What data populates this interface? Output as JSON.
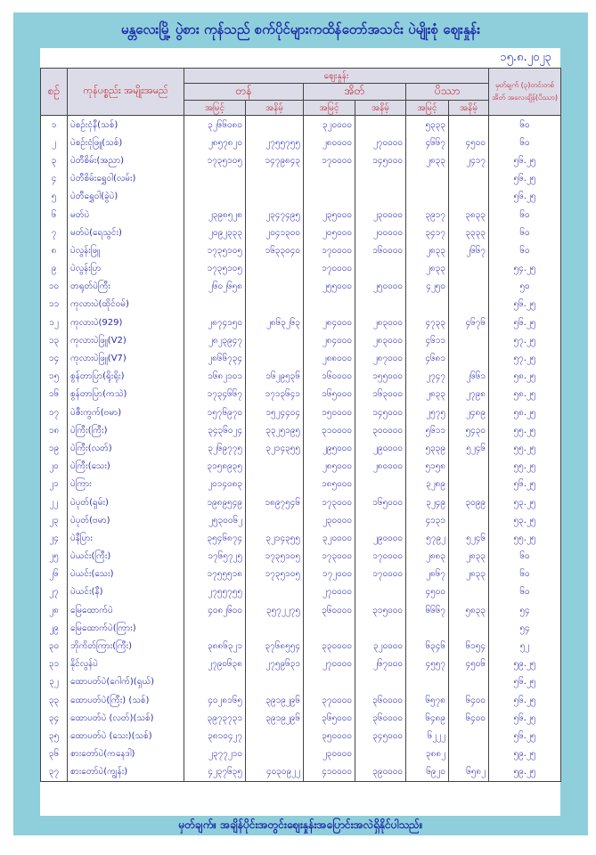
{
  "title": "မန္တလေးမြို့ ပွဲစား ကုန်သည် စက်ပိုင်များကထိန်တော်အသင်း ပဲမျိုးစုံ ဈေးနှုန်း",
  "date": "၁၅.၈.၂၀၂၃",
  "headers": {
    "no": "စဉ်",
    "item": "ကုန်ပစ္စည်း အမျိုးအမည်",
    "price": "ဈေးနှုန်း",
    "ton": "တန်",
    "bag": "အိတ်",
    "viss": "ပိဿာ",
    "high": "အမြင့်",
    "low": "အနိမ့်",
    "note": "မှတ်ချက် (၃)တင်းတစ်အိတ် အလေးချိန်(ပိဿာ)"
  },
  "rows": [
    [
      "၁",
      "ပဲစဉ်းငုံနီ(သစ်)",
      "၃၂၆၆၀၈၀",
      "",
      "၃၂၀၀၀၀",
      "",
      "၅၃၃၃",
      "",
      "၆၀"
    ],
    [
      "၂",
      "ပဲစဉ်းငုံဖြူ(သစ်)",
      "၂၈၅၇၈၂၀",
      "၂၇၅၅၇၅၅",
      "၂၈၀၀၀၀",
      "၂၇၀၀၀၀",
      "၄၆၆၇",
      "၄၅၀၀",
      "၆၀"
    ],
    [
      "၃",
      "ပဲတီစိမ်း(အညာ)",
      "၁၇၃၅၁၀၅",
      "၁၄၇၉၈၄၃",
      "၁၇၀၀၀၀",
      "၁၄၅၀၀၀",
      "၂၈၃၃",
      "၂၄၁၇",
      "၅၆.၂၅"
    ],
    [
      "၄",
      "ပဲတီစိမ်းရွှေဝါ(လမ်း)",
      "",
      "",
      "",
      "",
      "",
      "",
      "၅၆.၂၅"
    ],
    [
      "၅",
      "ပဲတီရွှေဝါ(ခွဲပဲ)",
      "",
      "",
      "",
      "",
      "",
      "",
      "၅၆.၂၅"
    ],
    [
      "၆",
      "မတ်ပဲ",
      "၂၃၉၈၅၂၈",
      "၂၃၄၇၄၉၅",
      "၂၃၅၀၀၀",
      "၂၃၀၀၀၀",
      "၃၉၁၇",
      "၃၈၃၃",
      "၆၀"
    ],
    [
      "၇",
      "မတ်ပဲ(ရေသွင်း)",
      "၂၀၉၂၃၃၃",
      "၂၀၄၁၃၀၀",
      "၂၀၅၀၀၀",
      "၂၀၀၀၀၀",
      "၃၄၁၇",
      "၃၃၃၃",
      "၆၀"
    ],
    [
      "၈",
      "ပဲလွန်းဖြူ",
      "၁၇၃၅၁၀၅",
      "၁၆၃၃၀၄၀",
      "၁၇၀၀၀၀",
      "၁၆၀၀၀၀",
      "၂၈၃၃",
      "၂၆၆၇",
      "၆၀"
    ],
    [
      "၉",
      "ပဲလွန်းပြာ",
      "၁၇၃၅၁၀၅",
      "",
      "၁၇၀၀၀၀",
      "",
      "၂၈၃၃",
      "",
      "၅၄.၂၅"
    ],
    [
      "၁၀",
      "တရုတ်ပဲကြီး",
      "၂၆၀၂၆၅၈",
      "",
      "၂၅၅၀၀၀",
      "၂၅၀၀၀၀",
      "၄၂၅၀",
      "",
      "၅၀"
    ],
    [
      "၁၁",
      "ကုလားပဲ(ထိုင်ဝမ်)",
      "",
      "",
      "",
      "",
      "",
      "",
      "၅၆.၂၅"
    ],
    [
      "၁၂",
      "ကုလားပဲ(929)",
      "၂၈၇၄၁၅၀",
      "၂၈၆၃၂၆၃",
      "၂၈၄၀၀၀",
      "၂၈၃၀၀၀",
      "၄၇၃၃",
      "၄၆၇၆",
      "၅၆.၂၅"
    ],
    [
      "၁၃",
      "ကုလားပဲဖြူ(V2)",
      "၂၈၂၃၉၄၇",
      "",
      "၂၈၄၀၀၀",
      "၂၈၃၀၀၀",
      "၄၆၁၁",
      "",
      "၅၇.၂၅"
    ],
    [
      "၁၄",
      "ကုလားပဲဖြူ(V7)",
      "၂၈၆၆၇၃၄",
      "",
      "၂၈၈၀၀၀",
      "၂၈၇၀၀၀",
      "၄၆၈၁",
      "",
      "၅၇.၂၅"
    ],
    [
      "၁၅",
      "စွန်တာပြာ(ရိုးရိုး)",
      "၁၆၈၂၁၀၁",
      "၁၆၂၉၅၃၆",
      "၁၆၀၀၀၀",
      "၁၅၅၀၀၀",
      "၂၇၄၇",
      "၂၆၆၁",
      "၅၈.၂၅"
    ],
    [
      "၁၆",
      "စွန်တာပြာ(ကသဲ)",
      "၁၇၃၄၆၆၇",
      "၁၇၁၃၆၄၁",
      "၁၆၅၀၀၀",
      "၁၆၃၀၀၀",
      "၂၈၃၃",
      "၂၇၉၈",
      "၅၈.၂၅"
    ],
    [
      "၁၇",
      "ပဲဇီးကွက်(ဗမာ)",
      "၁၅၇၆၉၇၀",
      "၁၅၂၄၄၀၄",
      "၁၅၀၀၀၀",
      "၁၄၅၀၀၀",
      "၂၅၇၅",
      "၂၄၈၉",
      "၅၈.၂၅"
    ],
    [
      "၁၈",
      "ပဲကြီး(ကြီး)",
      "၃၄၃၆၀၂၄",
      "၃၃၂၅၁၉၅",
      "၃၁၀၀၀၀",
      "၃၀၀၀၀၀",
      "၅၆၁၁",
      "၅၄၃၀",
      "၅၅.၂၅"
    ],
    [
      "၁၉",
      "ပဲကြီး(လတ်)",
      "၃၂၆၉၇၇၅",
      "၃၂၁၄၃၅၅",
      "၂၉၅၀၀၀",
      "၂၉၀၀၀၀",
      "၅၃၃၉",
      "၅၂၄၆",
      "၅၅.၂၅"
    ],
    [
      "၂၀",
      "ပဲကြီး(သေး)",
      "၃၁၅၈၉၃၅",
      "",
      "၂၈၅၀၀၀",
      "၂၈၀၀၀၀",
      "၅၁၅၈",
      "",
      "၅၅.၂၅"
    ],
    [
      "၂၁",
      "ပဲကြား",
      "၂၀၁၄၀၈၃",
      "",
      "၁၈၅၀၀၀",
      "",
      "၃၂၈၉",
      "",
      "၅၆.၂၅"
    ],
    [
      "၂၂",
      "ပဲပုတ်(ရှမ်း)",
      "၁၉၈၉၅၄၉",
      "၁၈၉၇၅၄၆",
      "၁၇၃၀၀၀",
      "၁၆၅၀၀၀",
      "၃၂၄၉",
      "၃၀၉၉",
      "၅၃.၂၅"
    ],
    [
      "၂၃",
      "ပဲပုတ်(ဗမာ)",
      "၂၅၃၀၀၆၂",
      "",
      "၂၃၀၀၀၀",
      "",
      "၄၁၃၁",
      "",
      "၅၃.၂၅"
    ],
    [
      "၂၄",
      "ပဲနီပြား",
      "၃၅၄၆၈၇၄",
      "၃၂၁၄၃၅၅",
      "၃၂၀၀၀၀",
      "၂၉၀၀၀၀",
      "၅၇၉၂",
      "၅၂၄၆",
      "၅၅.၂၅"
    ],
    [
      "၂၅",
      "ပဲယင်း(ကြီး)",
      "၁၇၆၅၇၂၅",
      "၁၇၃၅၁၀၅",
      "၁၇၃၀၀၀",
      "၁၇၀၀၀၀",
      "၂၈၈၃",
      "၂၈၃၃",
      "၆၀"
    ],
    [
      "၂၆",
      "ပဲယင်း(သေး)",
      "၁၇၅၅၅၁၈",
      "၁၇၃၅၁၀၅",
      "၁၇၂၀၀၀",
      "၁၇၀၀၀၀",
      "၂၈၆၇",
      "၂၈၃၃",
      "၆၀"
    ],
    [
      "၂၇",
      "ပဲယင်း(နီ)",
      "၂၇၅၅၇၅၅",
      "",
      "၂၇၀၀၀၀",
      "",
      "၄၅၀၀",
      "",
      "၆၀"
    ],
    [
      "၂၈",
      "မြေထောက်ပဲ",
      "၄၀၈၂၆၀၀",
      "၃၅၇၂၂၇၅",
      "၃၆၀၀၀၀",
      "၃၁၅၀၀၀",
      "၆၆၆၇",
      "၅၈၃၃",
      "၅၄"
    ],
    [
      "၂၉",
      "မြေထောက်ပဲ(ကြား)",
      "",
      "",
      "",
      "",
      "",
      "",
      "၅၄"
    ],
    [
      "၃၀",
      "ဘိုကိတ်ကြား(ကြီး)",
      "၃၈၈၆၃၂၁",
      "၃၇၆၈၅၅၄",
      "၃၃၀၀၀၀",
      "၃၂၀၀၀၀",
      "၆၃၄၆",
      "၆၁၅၄",
      "၅၂"
    ],
    [
      "၃၁",
      "နိုင်လွန်ပဲ",
      "၂၇၉၀၆၃၈",
      "၂၇၅၉၆၃၁",
      "၂၇၀၀၀၀",
      "၂၆၇၀၀၀",
      "၄၅၅၇",
      "၄၅၀၆",
      "၅၉.၂၅"
    ],
    [
      "၃၂",
      "ထောပတ်ပဲ(ဂေါက်)(ရှယ်)",
      "",
      "",
      "",
      "",
      "",
      "",
      "၅၆.၂၅"
    ],
    [
      "၃၃",
      "ထောပတ်ပဲ(ကြီး) (သစ်)",
      "၄၀၂၈၁၆၅",
      "၃၉၁၉၂၉၆",
      "၃၇၀၀၀၀",
      "၃၆၀၀၀၀",
      "၆၅၇၈",
      "၆၄၀၀",
      "၅၆.၂၅"
    ],
    [
      "၃၄",
      "ထောပတ်ပဲ (လတ်)(သစ်)",
      "၃၉၇၃၇၃၁",
      "၃၉၁၉၂၉၆",
      "၃၆၅၀၀၀",
      "၃၆၀၀၀၀",
      "၆၄၈၉",
      "၆၄၀၀",
      "၅၆.၂၅"
    ],
    [
      "၃၅",
      "ထောပတ်ပဲ (သေး)(သစ်)",
      "၃၈၁၀၄၂၇",
      "",
      "၃၅၀၀၀၀",
      "၃၄၅၀၀၀",
      "၆၂၂၂",
      "",
      "၅၆.၂၅"
    ],
    [
      "၃၆",
      "စားတော်ပဲ(ကနေဒါ)",
      "၂၃၇၇၂၁၀",
      "",
      "၂၃၀၀၀၀",
      "",
      "၃၈၈၂",
      "",
      "၅၉.၂၅"
    ],
    [
      "၃၇",
      "စားတော်ပဲ(ကျွန်း)",
      "၄၂၃၇၆၃၅",
      "၄၀၃၀၉၂၂",
      "၄၁၀၀၀၀",
      "၃၉၀၀၀၀",
      "၆၉၂၀",
      "၆၅၈၂",
      "၅၉.၂၅"
    ]
  ],
  "footer": "မှတ်ချက်။ အချိန်ပိုင်းအတွင်းဈေးနှုန်းအပြောင်းအလဲရှိနိုင်ပါသည်။",
  "colors": {
    "frame": "#8fcfdc",
    "header_text": "#c02638",
    "body_text": "#2a2ab0",
    "title_text": "#1c2aa6"
  }
}
